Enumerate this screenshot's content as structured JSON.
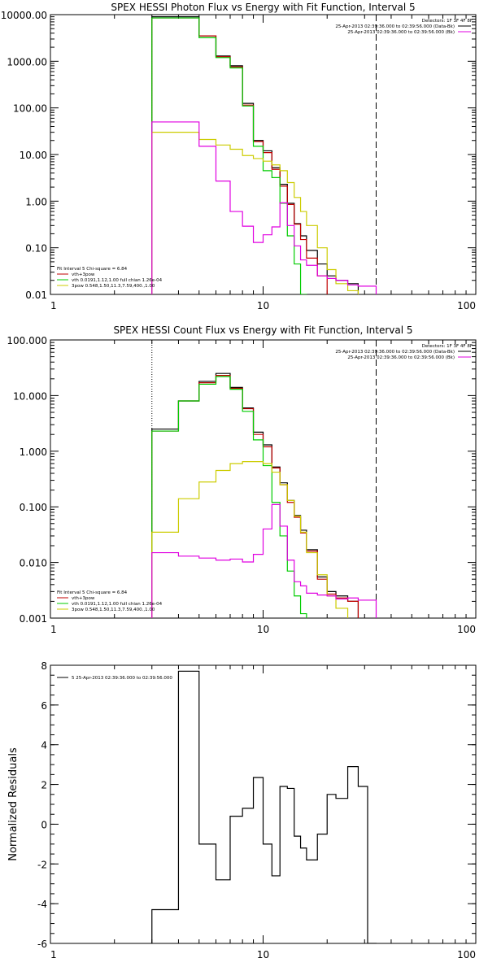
{
  "chart_data": [
    {
      "id": "photon",
      "type": "line",
      "title": "SPEX HESSI Photon Flux vs Energy with Fit Function, Interval 5",
      "x_scale": "log",
      "y_scale": "log",
      "xlim": [
        1,
        100
      ],
      "ylim": [
        0.01,
        10000
      ],
      "x_tick_values": [
        1,
        10,
        100
      ],
      "x_tick_labels": [
        "1",
        "10",
        "100"
      ],
      "y_tick_values": [
        0.01,
        0.1,
        1,
        10,
        100,
        1000,
        10000
      ],
      "y_tick_labels": [
        "0.01",
        "0.10",
        "1.00",
        "10.00",
        "100.00",
        "1000.00",
        "10000.00"
      ],
      "edges": [
        3,
        4,
        5,
        6,
        7,
        8,
        9,
        10,
        11,
        12,
        13,
        14,
        15,
        16,
        18,
        20,
        22,
        25,
        28,
        31,
        34
      ],
      "vlines": [
        {
          "x": 3,
          "style": "dotted"
        },
        {
          "x": 34,
          "style": "dashed"
        }
      ],
      "detectors_label": "Detectors: 1F 3F 4F 8F",
      "legend_top": [
        {
          "label": "25-Apr-2013 02:39:36.000 to 02:39:56.000 (Data-Bk)",
          "color": "#000000"
        },
        {
          "label": "25-Apr-2013 02:39:36.000 to 02:39:56.000 (Bk)",
          "color": "#e000e0"
        }
      ],
      "fit_label": "Fit Interval 5   Chi-square = 6.84",
      "legend_bottom": [
        {
          "label": "vth+3pow",
          "color": "#c00000"
        },
        {
          "label": "vth 0.0191,1.12,1.00  full chian 1.26e-04",
          "color": "#00cc00"
        },
        {
          "label": "3pow 0.548,1.50,11.3,7.59,400.,1.00",
          "color": "#cccc00"
        }
      ],
      "series": [
        {
          "name": "Data-Bk",
          "color": "#000000",
          "y": [
            9000,
            9000,
            3500,
            1300,
            800,
            125,
            20,
            12,
            5.2,
            2.3,
            0.9,
            0.33,
            0.18,
            0.088,
            0.045,
            0.025,
            0.02,
            0.017,
            0.0,
            0.0
          ]
        },
        {
          "name": "vth+3pow",
          "color": "#c00000",
          "y": [
            8500,
            8500,
            3500,
            1250,
            760,
            115,
            19,
            11,
            4.8,
            2.1,
            0.85,
            0.32,
            0.15,
            0.06,
            0.025,
            0.0,
            0.0,
            0.0,
            0.0,
            0.0
          ]
        },
        {
          "name": "vth",
          "color": "#00cc00",
          "y": [
            8500,
            8500,
            3200,
            1200,
            720,
            110,
            15,
            4.5,
            3.2,
            0.9,
            0.18,
            0.045,
            0.01,
            0.0,
            0.0,
            0.0,
            0.0,
            0.0,
            0.0,
            0.0
          ]
        },
        {
          "name": "3pow",
          "color": "#cccc00",
          "y": [
            30,
            30,
            21,
            16,
            13,
            9.5,
            8.2,
            7.2,
            6,
            4.5,
            2.5,
            1.2,
            0.6,
            0.3,
            0.1,
            0.034,
            0.017,
            0.012,
            0.0,
            0.0
          ]
        },
        {
          "name": "Bk",
          "color": "#e000e0",
          "y": [
            50,
            50,
            15,
            2.7,
            0.6,
            0.29,
            0.13,
            0.19,
            0.28,
            0.92,
            0.3,
            0.11,
            0.055,
            0.042,
            0.025,
            0.022,
            0.02,
            0.016,
            0.015,
            0.015
          ]
        }
      ]
    },
    {
      "id": "count",
      "type": "line",
      "title": "SPEX HESSI Count Flux vs Energy with Fit Function, Interval 5",
      "x_scale": "log",
      "y_scale": "log",
      "xlim": [
        1,
        100
      ],
      "ylim": [
        0.001,
        100
      ],
      "x_tick_values": [
        1,
        10,
        100
      ],
      "x_tick_labels": [
        "1",
        "10",
        "100"
      ],
      "y_tick_values": [
        0.001,
        0.01,
        0.1,
        1,
        10,
        100
      ],
      "y_tick_labels": [
        "0.001",
        "0.010",
        "0.100",
        "1.000",
        "10.000",
        "100.000"
      ],
      "edges": [
        3,
        4,
        5,
        6,
        7,
        8,
        9,
        10,
        11,
        12,
        13,
        14,
        15,
        16,
        18,
        20,
        22,
        25,
        28,
        31,
        34
      ],
      "vlines": [
        {
          "x": 3,
          "style": "dotted"
        },
        {
          "x": 34,
          "style": "dashed"
        }
      ],
      "detectors_label": "Detectors: 1F 3F 4F 8F",
      "legend_top": [
        {
          "label": "25-Apr-2013 02:39:36.000 to 02:39:56.000 (Data-Bk)",
          "color": "#000000"
        },
        {
          "label": "25-Apr-2013 02:39:36.000 to 02:39:56.000 (Bk)",
          "color": "#e000e0"
        }
      ],
      "fit_label": "Fit Interval 5   Chi-square = 6.84",
      "legend_bottom": [
        {
          "label": "vth+3pow",
          "color": "#c00000"
        },
        {
          "label": "vth 0.0191,1.12,1.00  full chian 1.26e-04",
          "color": "#00cc00"
        },
        {
          "label": "3pow 0.548,1.50,11.3,7.59,400.,1.00",
          "color": "#cccc00"
        }
      ],
      "series": [
        {
          "name": "Data-Bk",
          "color": "#000000",
          "y": [
            2.5,
            8,
            18,
            25,
            14,
            6,
            2.2,
            1.3,
            0.52,
            0.27,
            0.13,
            0.07,
            0.038,
            0.017,
            0.0055,
            0.003,
            0.0025,
            0.002,
            0.0,
            0.0
          ]
        },
        {
          "name": "vth+3pow",
          "color": "#c00000",
          "y": [
            2.3,
            8,
            17,
            23,
            13.5,
            5.8,
            2,
            1.2,
            0.5,
            0.25,
            0.12,
            0.065,
            0.034,
            0.016,
            0.005,
            0.0027,
            0.0023,
            0.002,
            0.0,
            0.0
          ]
        },
        {
          "name": "vth",
          "color": "#00cc00",
          "y": [
            2.3,
            8,
            16,
            22,
            13,
            5.2,
            1.6,
            0.55,
            0.12,
            0.03,
            0.007,
            0.0025,
            0.0012,
            0.0008,
            0.0005,
            0.0,
            0.0,
            0.0,
            0.0,
            0.0
          ]
        },
        {
          "name": "3pow",
          "color": "#cccc00",
          "y": [
            0.035,
            0.14,
            0.28,
            0.45,
            0.6,
            0.65,
            0.65,
            0.6,
            0.42,
            0.25,
            0.13,
            0.068,
            0.035,
            0.015,
            0.006,
            0.0025,
            0.0015,
            0.0008,
            0.0,
            0.0
          ]
        },
        {
          "name": "Bk",
          "color": "#e000e0",
          "y": [
            0.015,
            0.013,
            0.012,
            0.011,
            0.0115,
            0.0102,
            0.014,
            0.04,
            0.11,
            0.045,
            0.011,
            0.0045,
            0.0038,
            0.0028,
            0.0026,
            0.0025,
            0.0022,
            0.0023,
            0.0021,
            0.0021
          ]
        }
      ]
    },
    {
      "id": "residuals",
      "type": "line",
      "title": "",
      "x_scale": "log",
      "y_scale": "linear",
      "xlim": [
        1,
        100
      ],
      "ylim": [
        -6,
        8
      ],
      "ylabel": "Normalized Residuals",
      "x_tick_values": [
        1,
        10,
        100
      ],
      "x_tick_labels": [
        "1",
        "10",
        "100"
      ],
      "y_tick_values": [
        -6,
        -4,
        -2,
        0,
        2,
        4,
        6,
        8
      ],
      "y_tick_labels": [
        "-6",
        "-4",
        "-2",
        "0",
        "2",
        "4",
        "6",
        "8"
      ],
      "edges": [
        3,
        4,
        5,
        6,
        7,
        8,
        9,
        10,
        11,
        12,
        13,
        14,
        15,
        16,
        18,
        20,
        22,
        25,
        28,
        31,
        34
      ],
      "legend_top_left": [
        {
          "label": "5  25-Apr-2013 02:39:36.000 to 02:39:56.000",
          "color": "#000000"
        }
      ],
      "series": [
        {
          "name": "5  25-Apr-2013 02:39:36.000 to 02:39:56.000",
          "color": "#000000",
          "y": [
            -4.3,
            7.7,
            -1.0,
            -2.8,
            0.4,
            0.8,
            2.35,
            -1.0,
            -2.6,
            1.9,
            1.8,
            -0.6,
            -1.2,
            -1.8,
            -0.5,
            1.5,
            1.3,
            2.9,
            1.9,
            -6.0
          ]
        }
      ]
    }
  ]
}
